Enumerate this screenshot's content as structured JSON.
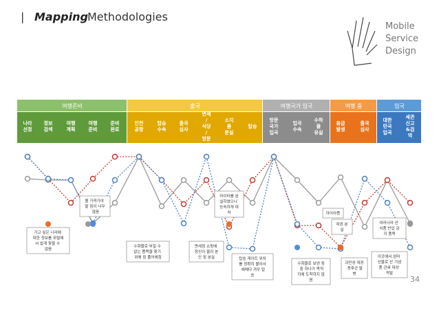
{
  "header": {
    "bar": "|",
    "bold": "Mapping",
    "title": "Methodologies"
  },
  "logo": [
    "Mobile",
    "Service",
    "Design"
  ],
  "phases": [
    {
      "label": "여행준비"
    },
    {
      "label": "출국"
    },
    {
      "label": "여행국가 입국"
    },
    {
      "label": "여행 중"
    },
    {
      "label": "입국"
    }
  ],
  "steps": [
    "나라 선정",
    "정보 검색",
    "여행 계획",
    "여행 준비",
    "준비 완료",
    "인천 공항",
    "탑승 수속",
    "출국 심사",
    "면세 / 식당 / 방문",
    "소지 품 분실",
    "탑승",
    "방문 국가 입국",
    "입국 수속",
    "수하 물 유실",
    "응급 발생",
    "출국 심사",
    "대한 민국 입국",
    "세관 신고 &검 역"
  ],
  "annotations": [
    "가고 싶은 나라에 대한 정보를 포털에서 쉽게 찾을 수 없음",
    "뭘 가져가야 할 짐이 너무 많음",
    "수화물로 부칠 수 없는 품목을 찾기 위해 짐 풀어헤침",
    "면세점 쇼핑에 정신이 팔려 본인 짐 분실",
    "라이터를 분실하였으나 능숙하게 대처",
    "탑승 게이트 위치를 정확히 몰라서 헤매다 겨우 탑승",
    "수화물로 보낸 짐 중 하나가 목적지에 도착하지 않음",
    "아이아픔",
    "여권 분실",
    "과민성 대장 증후군 발병",
    "여러나라 산 식품 반입 금지 품목",
    "이곳에서 엄마 선물로 산 기념품 관세 대상 적발"
  ],
  "page_number": "34"
}
